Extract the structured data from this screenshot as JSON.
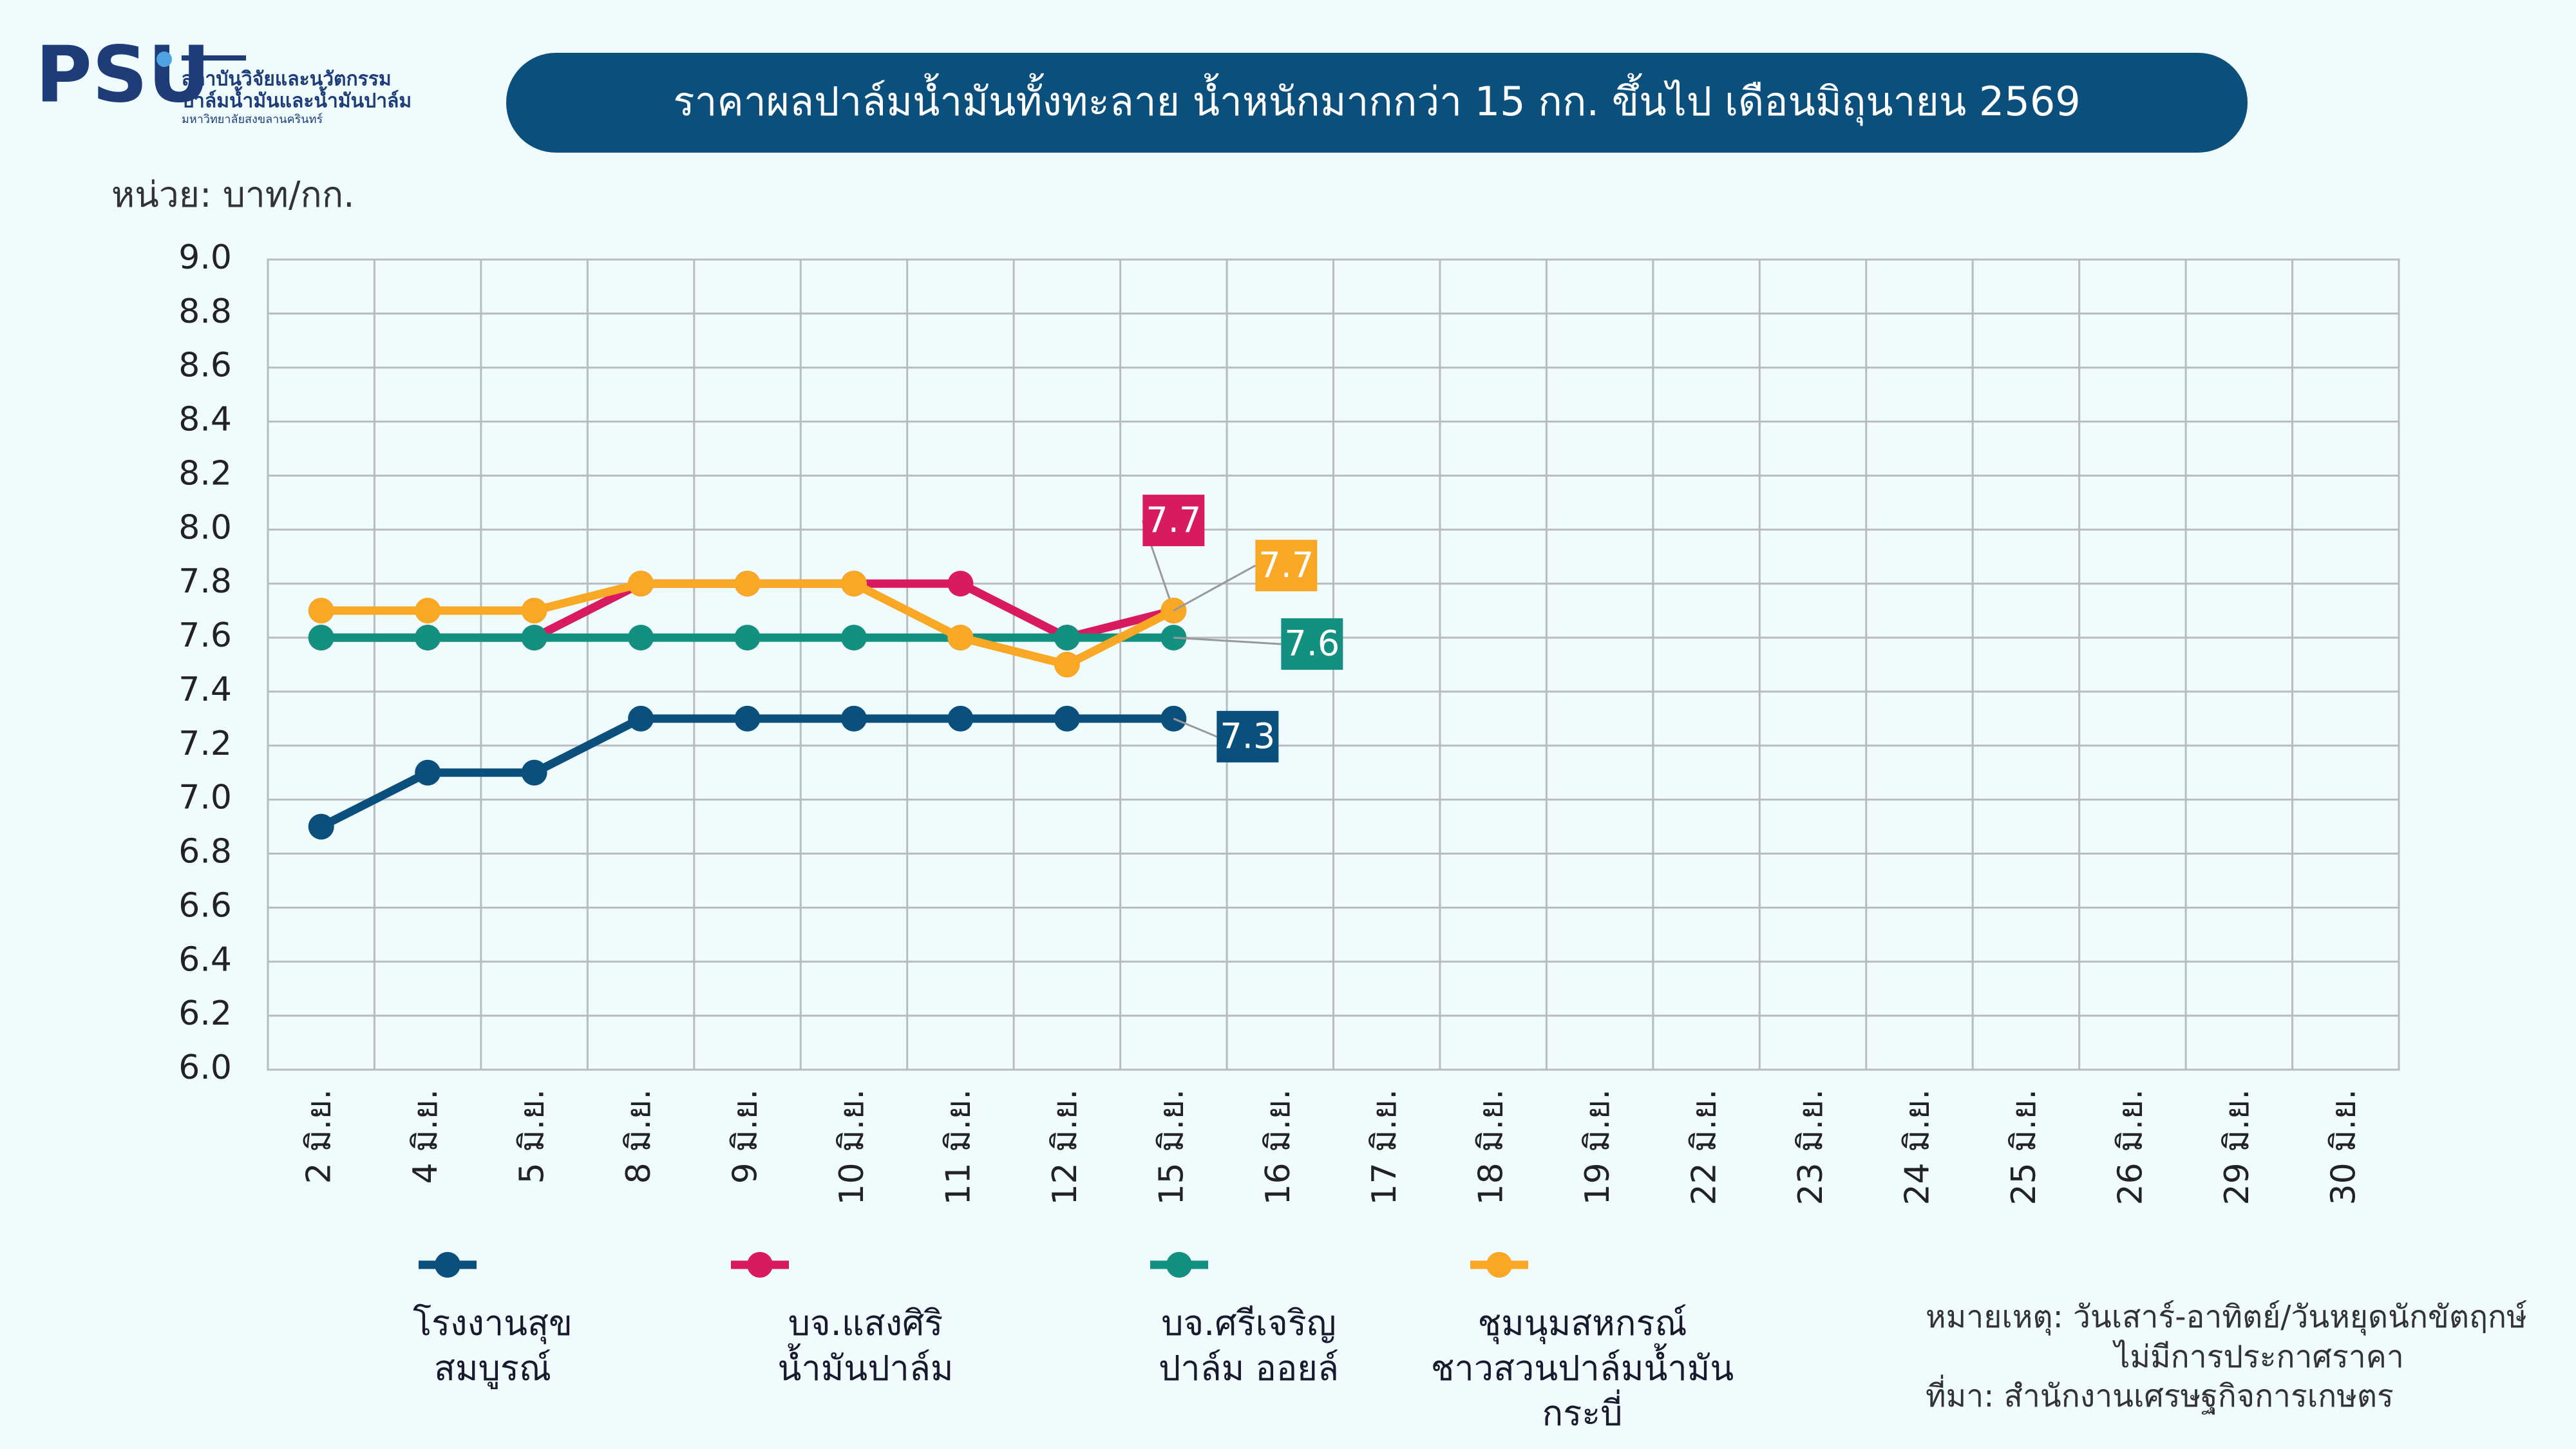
{
  "header": {
    "logo": "PSU",
    "org_line1": "สถาบันวิจัยและนวัตกรรม",
    "org_line2": "ปาล์มน้ำมันและน้ำมันปาล์ม",
    "org_line3": "มหาวิทยาลัยสงขลานครินทร์"
  },
  "chart_data": {
    "type": "line",
    "title": "ราคาผลปาล์มน้ำมันทั้งทะลาย น้ำหนักมากกว่า 15 กก. ขึ้นไป เดือนมิถุนายน 2569",
    "y_label": "หน่วย: บาท/กก.",
    "categories": [
      "2 มิ.ย.",
      "4 มิ.ย.",
      "5 มิ.ย.",
      "8 มิ.ย.",
      "9 มิ.ย.",
      "10 มิ.ย.",
      "11 มิ.ย.",
      "12 มิ.ย.",
      "15 มิ.ย.",
      "16 มิ.ย.",
      "17 มิ.ย.",
      "18 มิ.ย.",
      "19 มิ.ย.",
      "22 มิ.ย.",
      "23 มิ.ย.",
      "24 มิ.ย.",
      "25 มิ.ย.",
      "26 มิ.ย.",
      "29 มิ.ย.",
      "30 มิ.ย."
    ],
    "series": [
      {
        "name": "โรงงานสุข\nสมบูรณ์",
        "color": "#0b4f7c",
        "values": [
          6.9,
          7.1,
          7.1,
          7.3,
          7.3,
          7.3,
          7.3,
          7.3,
          7.3,
          null,
          null,
          null,
          null,
          null,
          null,
          null,
          null,
          null,
          null,
          null
        ]
      },
      {
        "name": "บจ.แสงศิริ\nน้ำมันปาล์ม",
        "color": "#d81b60",
        "values": [
          7.6,
          7.6,
          7.6,
          7.8,
          7.8,
          7.8,
          7.8,
          7.6,
          7.7,
          null,
          null,
          null,
          null,
          null,
          null,
          null,
          null,
          null,
          null,
          null
        ]
      },
      {
        "name": "บจ.ศรีเจริญ\nปาล์ม ออยล์",
        "color": "#13907f",
        "values": [
          7.6,
          7.6,
          7.6,
          7.6,
          7.6,
          7.6,
          7.6,
          7.6,
          7.6,
          null,
          null,
          null,
          null,
          null,
          null,
          null,
          null,
          null,
          null,
          null
        ]
      },
      {
        "name": "ชุมนุมสหกรณ์\nชาวสวนปาล์มน้ำมัน\nกระบี่",
        "color": "#f9a825",
        "values": [
          7.7,
          7.7,
          7.7,
          7.8,
          7.8,
          7.8,
          7.6,
          7.5,
          7.7,
          null,
          null,
          null,
          null,
          null,
          null,
          null,
          null,
          null,
          null,
          null
        ]
      }
    ],
    "ylim": [
      6,
      9
    ],
    "yticks": [
      {
        "value": 6,
        "label": "6.0"
      },
      6.2,
      6.4,
      6.6,
      6.8,
      {
        "value": 7,
        "label": "7.0"
      },
      7.2,
      7.4,
      7.6,
      7.8,
      {
        "value": 8,
        "label": "8.0"
      },
      8.2,
      8.4,
      8.6,
      8.8,
      {
        "value": 9,
        "label": "9.0"
      }
    ],
    "grid": true,
    "notes": [
      "หมายเหตุ: วันเสาร์-อาทิตย์/วันหยุดนักขัตฤกษ์",
      "ไม่มีการประกาศราคา",
      "ที่มา: สำนักงานเศรษฐกิจการเกษตร"
    ]
  }
}
